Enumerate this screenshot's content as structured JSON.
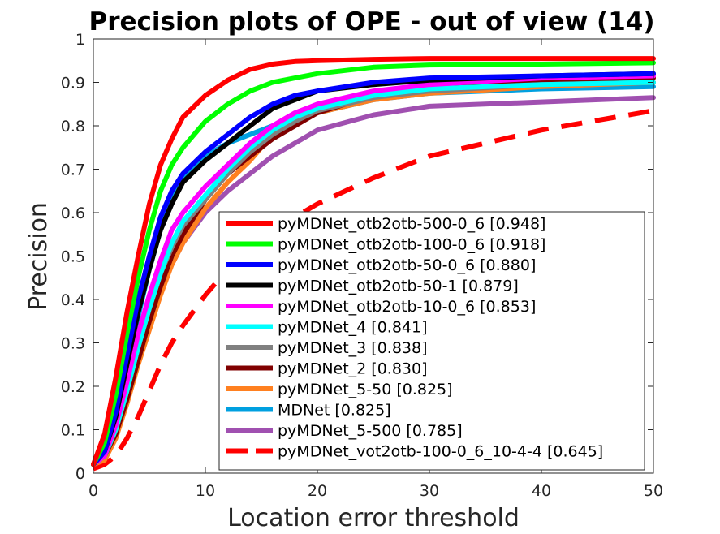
{
  "chart_data": {
    "type": "line",
    "title": "Precision plots of OPE - out of view (14)",
    "xlabel": "Location error threshold",
    "ylabel": "Precision",
    "xlim": [
      0,
      50
    ],
    "ylim": [
      0,
      1
    ],
    "xticks": [
      "0",
      "10",
      "20",
      "30",
      "40",
      "50"
    ],
    "yticks": [
      "0",
      "0.1",
      "0.2",
      "0.3",
      "0.4",
      "0.5",
      "0.6",
      "0.7",
      "0.8",
      "0.9",
      "1"
    ],
    "grid": false,
    "legend_position": "bottom-right",
    "series": [
      {
        "name": "pyMDNet_otb2otb-500-0_6 [0.948]",
        "color": "#ff0000",
        "dash": false,
        "x": [
          0,
          1,
          2,
          3,
          4,
          5,
          6,
          7,
          8,
          10,
          12,
          14,
          16,
          18,
          20,
          25,
          30,
          40,
          50
        ],
        "y": [
          0.02,
          0.09,
          0.22,
          0.37,
          0.5,
          0.62,
          0.71,
          0.77,
          0.82,
          0.87,
          0.905,
          0.93,
          0.942,
          0.948,
          0.95,
          0.953,
          0.955,
          0.955,
          0.955
        ]
      },
      {
        "name": "pyMDNet_otb2otb-100-0_6 [0.918]",
        "color": "#00ff00",
        "dash": false,
        "x": [
          0,
          1,
          2,
          3,
          4,
          5,
          6,
          7,
          8,
          10,
          12,
          14,
          16,
          18,
          20,
          25,
          30,
          40,
          50
        ],
        "y": [
          0.02,
          0.07,
          0.18,
          0.32,
          0.45,
          0.56,
          0.65,
          0.71,
          0.75,
          0.81,
          0.85,
          0.88,
          0.9,
          0.91,
          0.92,
          0.935,
          0.94,
          0.942,
          0.945
        ]
      },
      {
        "name": "pyMDNet_otb2otb-50-0_6 [0.880]",
        "color": "#0000ff",
        "dash": false,
        "x": [
          0,
          1,
          2,
          3,
          4,
          5,
          6,
          7,
          8,
          10,
          12,
          14,
          16,
          18,
          20,
          25,
          30,
          40,
          50
        ],
        "y": [
          0.02,
          0.05,
          0.14,
          0.27,
          0.4,
          0.5,
          0.59,
          0.65,
          0.69,
          0.74,
          0.78,
          0.82,
          0.85,
          0.87,
          0.88,
          0.9,
          0.91,
          0.915,
          0.92
        ]
      },
      {
        "name": "pyMDNet_otb2otb-50-1 [0.879]",
        "color": "#000000",
        "dash": false,
        "x": [
          0,
          1,
          2,
          3,
          4,
          5,
          6,
          7,
          8,
          10,
          12,
          14,
          16,
          18,
          20,
          25,
          30,
          40,
          50
        ],
        "y": [
          0.02,
          0.05,
          0.13,
          0.25,
          0.37,
          0.47,
          0.56,
          0.62,
          0.67,
          0.72,
          0.76,
          0.8,
          0.84,
          0.86,
          0.88,
          0.895,
          0.905,
          0.915,
          0.92
        ]
      },
      {
        "name": "pyMDNet_otb2otb-10-0_6 [0.853]",
        "color": "#ff00ff",
        "dash": false,
        "x": [
          0,
          1,
          2,
          3,
          4,
          5,
          6,
          7,
          8,
          10,
          12,
          14,
          16,
          18,
          20,
          25,
          30,
          40,
          50
        ],
        "y": [
          0.02,
          0.04,
          0.11,
          0.21,
          0.32,
          0.41,
          0.49,
          0.56,
          0.6,
          0.66,
          0.71,
          0.76,
          0.8,
          0.83,
          0.85,
          0.88,
          0.895,
          0.91,
          0.915
        ]
      },
      {
        "name": "pyMDNet_4 [0.841]",
        "color": "#00ffff",
        "dash": false,
        "x": [
          0,
          1,
          2,
          3,
          4,
          5,
          6,
          7,
          8,
          10,
          12,
          14,
          16,
          18,
          20,
          25,
          30,
          40,
          50
        ],
        "y": [
          0.02,
          0.04,
          0.1,
          0.19,
          0.29,
          0.38,
          0.46,
          0.53,
          0.58,
          0.64,
          0.7,
          0.75,
          0.79,
          0.82,
          0.84,
          0.87,
          0.885,
          0.895,
          0.9
        ]
      },
      {
        "name": "pyMDNet_3 [0.838]",
        "color": "#808080",
        "dash": false,
        "x": [
          0,
          1,
          2,
          3,
          4,
          5,
          6,
          7,
          8,
          10,
          12,
          14,
          16,
          18,
          20,
          25,
          30,
          40,
          50
        ],
        "y": [
          0.02,
          0.04,
          0.1,
          0.19,
          0.29,
          0.38,
          0.46,
          0.52,
          0.57,
          0.63,
          0.69,
          0.74,
          0.78,
          0.81,
          0.835,
          0.865,
          0.88,
          0.895,
          0.9
        ]
      },
      {
        "name": "pyMDNet_2 [0.830]",
        "color": "#800000",
        "dash": false,
        "x": [
          0,
          1,
          2,
          3,
          4,
          5,
          6,
          7,
          8,
          10,
          12,
          14,
          16,
          18,
          20,
          25,
          30,
          40,
          50
        ],
        "y": [
          0.02,
          0.04,
          0.09,
          0.17,
          0.26,
          0.35,
          0.43,
          0.5,
          0.55,
          0.63,
          0.69,
          0.73,
          0.77,
          0.8,
          0.83,
          0.87,
          0.89,
          0.9,
          0.91
        ]
      },
      {
        "name": "pyMDNet_5-50 [0.825]",
        "color": "#ff8020",
        "dash": false,
        "x": [
          0,
          1,
          2,
          3,
          4,
          5,
          6,
          7,
          8,
          10,
          12,
          14,
          16,
          18,
          20,
          25,
          30,
          40,
          50
        ],
        "y": [
          0.02,
          0.03,
          0.08,
          0.16,
          0.25,
          0.33,
          0.41,
          0.48,
          0.53,
          0.61,
          0.67,
          0.72,
          0.78,
          0.81,
          0.83,
          0.86,
          0.875,
          0.89,
          0.9
        ]
      },
      {
        "name": "MDNet [0.825]",
        "color": "#00a0e0",
        "dash": false,
        "x": [
          0,
          1,
          2,
          3,
          4,
          5,
          6,
          7,
          8,
          10,
          12,
          14,
          16,
          18,
          20,
          25,
          30,
          40,
          50
        ],
        "y": [
          0.02,
          0.04,
          0.12,
          0.24,
          0.36,
          0.47,
          0.56,
          0.63,
          0.68,
          0.73,
          0.76,
          0.78,
          0.8,
          0.82,
          0.83,
          0.86,
          0.875,
          0.885,
          0.89
        ]
      },
      {
        "name": "pyMDNet_5-500 [0.785]",
        "color": "#a050b0",
        "dash": false,
        "x": [
          0,
          1,
          2,
          3,
          4,
          5,
          6,
          7,
          8,
          10,
          12,
          14,
          16,
          18,
          20,
          25,
          30,
          40,
          50
        ],
        "y": [
          0.02,
          0.04,
          0.1,
          0.18,
          0.27,
          0.35,
          0.42,
          0.48,
          0.53,
          0.6,
          0.65,
          0.69,
          0.73,
          0.76,
          0.79,
          0.825,
          0.845,
          0.855,
          0.865
        ]
      },
      {
        "name": "pyMDNet_vot2otb-100-0_6_10-4-4 [0.645]",
        "color": "#ff0000",
        "dash": true,
        "x": [
          0,
          1,
          2,
          3,
          4,
          5,
          6,
          7,
          8,
          10,
          12,
          14,
          16,
          18,
          20,
          25,
          30,
          40,
          50
        ],
        "y": [
          0.01,
          0.02,
          0.04,
          0.08,
          0.13,
          0.19,
          0.25,
          0.3,
          0.34,
          0.41,
          0.47,
          0.52,
          0.56,
          0.59,
          0.62,
          0.68,
          0.73,
          0.79,
          0.835
        ]
      }
    ]
  }
}
